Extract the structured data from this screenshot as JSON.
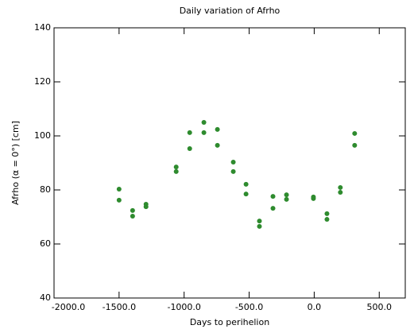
{
  "chart_data": {
    "type": "scatter",
    "title": "Daily variation of Afrho",
    "x_label": "Days to perihelion",
    "y_label": "Afrho (α = 0°) [cm]",
    "series": [
      {
        "color": "#2e8b2e",
        "x": [
          -1500,
          -1500,
          -1396,
          -1396,
          -1293,
          -1293,
          -1061,
          -1061,
          -957,
          -957,
          -848,
          -848,
          -744,
          -744,
          -622,
          -622,
          -524,
          -524,
          -421,
          -421,
          -317,
          -317,
          -213,
          -213,
          -6,
          -6,
          98,
          98,
          201,
          201,
          311,
          311
        ],
        "values": [
          80.3,
          76.2,
          72.4,
          70.3,
          74.7,
          73.8,
          88.5,
          86.8,
          101.2,
          95.3,
          105,
          101.2,
          102.4,
          96.5,
          90.3,
          86.8,
          82.1,
          78.5,
          68.5,
          66.5,
          77.6,
          73.2,
          78.2,
          76.5,
          77.4,
          76.8,
          71.2,
          69.1,
          80.9,
          79.1,
          100.9,
          96.5
        ]
      }
    ],
    "xlim": [
      -2000,
      700
    ],
    "xticks": [
      {
        "value": -2000,
        "label": "-2000.0"
      },
      {
        "value": -1500,
        "label": "-1500.0"
      },
      {
        "value": -1000,
        "label": "-1000.0"
      },
      {
        "value": -500,
        "label": "-500.0"
      },
      {
        "value": 0,
        "label": "0.0"
      },
      {
        "value": 500,
        "label": "500.0"
      }
    ],
    "ylim": [
      40,
      140
    ],
    "yticks": [
      40,
      60,
      80,
      100,
      120,
      140
    ]
  }
}
